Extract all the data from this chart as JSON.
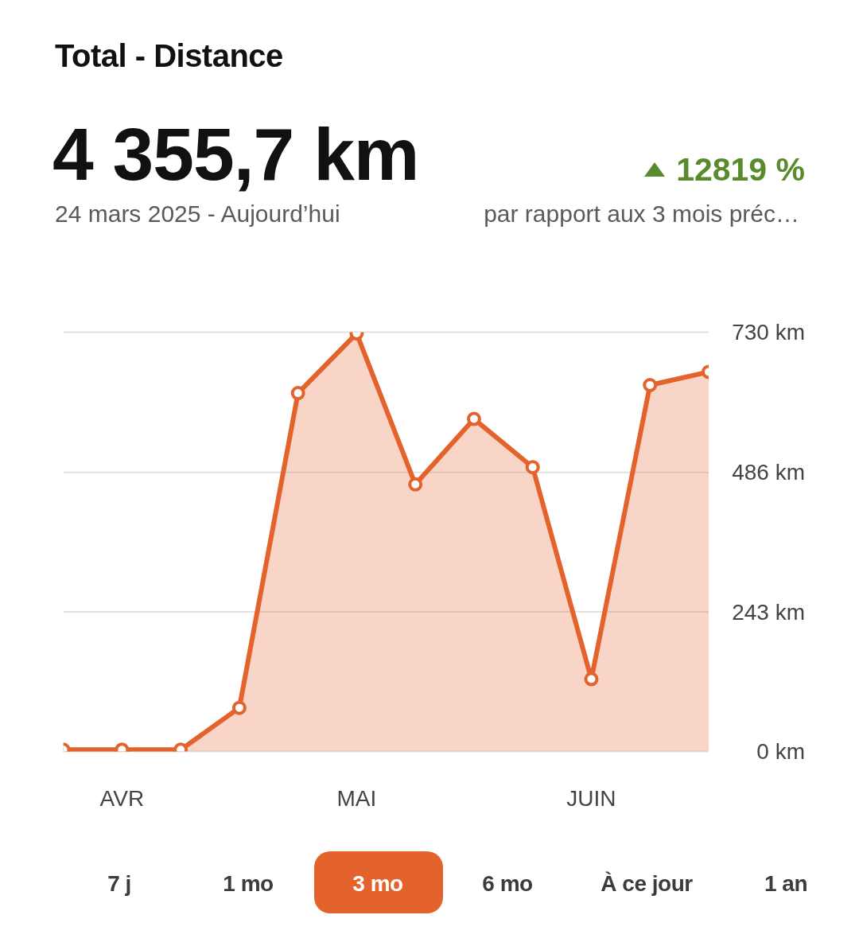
{
  "chart_data": {
    "type": "area",
    "title": "Total - Distance",
    "subtitle": "24 mars 2025 - Aujourd’hui",
    "annotations": [
      "4 355,7 km",
      "12819 %",
      "par rapport aux 3 mois préc…",
      "7 j",
      "1 mo",
      "3 mo",
      "6 mo",
      "À ce jour",
      "1 an"
    ],
    "categories": [
      null,
      "AVR",
      null,
      null,
      null,
      "MAI",
      null,
      null,
      null,
      "JUIN",
      null,
      null
    ],
    "values": [
      3,
      3,
      3,
      76,
      624,
      728,
      465,
      579,
      495,
      126,
      638,
      661
    ],
    "color": "#e4632d",
    "ylim": [
      0,
      730
    ],
    "yticks": [
      {
        "value": 0,
        "label": "0 km"
      },
      {
        "value": 243,
        "label": "243 km"
      },
      {
        "value": 486,
        "label": "486 km"
      },
      {
        "value": 730,
        "label": "730 km"
      }
    ],
    "grid": "y",
    "marker": "circle"
  }
}
